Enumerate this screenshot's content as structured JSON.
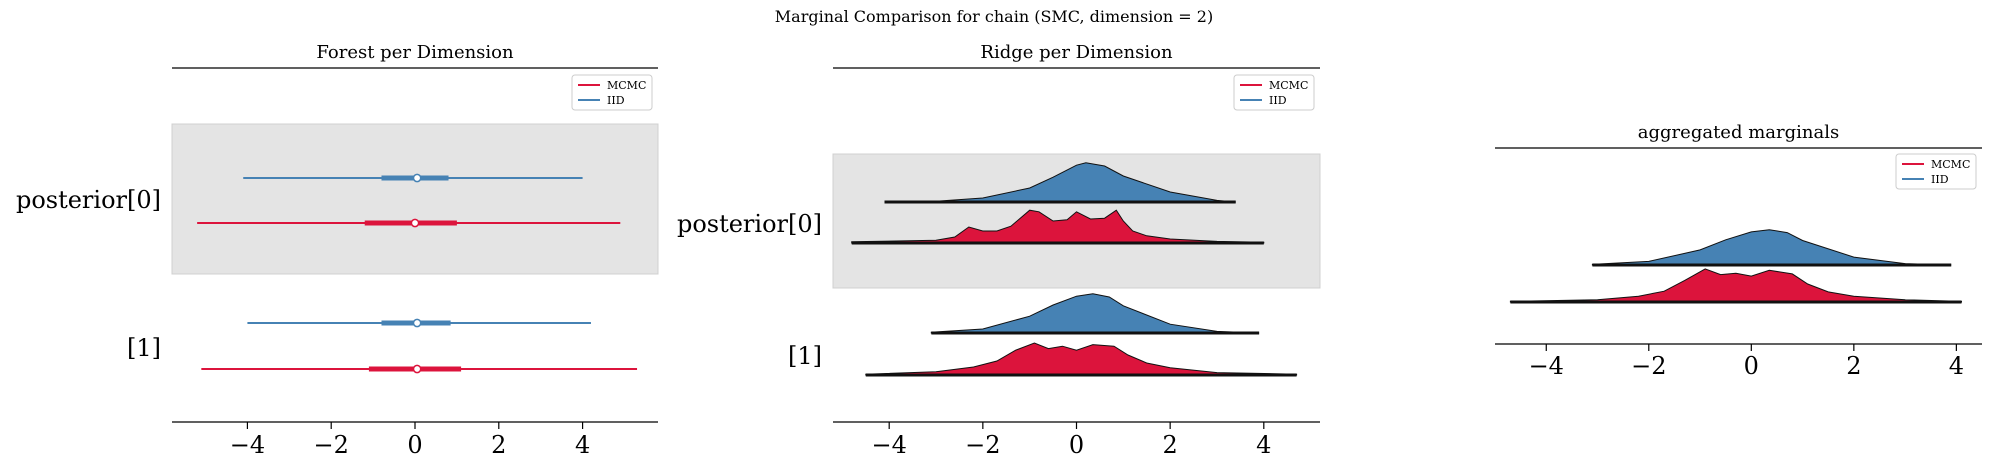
{
  "suptitle": "Marginal Comparison for chain (SMC, dimension = 2)",
  "colors": {
    "mcmc": "#dc143c",
    "iid": "#4682b4",
    "band": "#e4e4e4"
  },
  "chart_data": [
    {
      "type": "forest",
      "title": "Forest per Dimension",
      "row_labels": [
        "posterior[0]",
        "[1]"
      ],
      "xticks": [
        -4,
        -2,
        0,
        2,
        4
      ],
      "xlim": [
        -5.8,
        5.8
      ],
      "legend": {
        "placement": "top-right",
        "entries": [
          "MCMC",
          "IID"
        ]
      },
      "series": [
        {
          "name": "IID",
          "rows": [
            {
              "hdi": [
                -4.1,
                4.0
              ],
              "iqr": [
                -0.8,
                0.8
              ],
              "median": 0.05
            },
            {
              "hdi": [
                -4.0,
                4.2
              ],
              "iqr": [
                -0.8,
                0.85
              ],
              "median": 0.05
            }
          ]
        },
        {
          "name": "MCMC",
          "rows": [
            {
              "hdi": [
                -5.2,
                4.9
              ],
              "iqr": [
                -1.2,
                1.0
              ],
              "median": 0.0
            },
            {
              "hdi": [
                -5.1,
                5.3
              ],
              "iqr": [
                -1.1,
                1.1
              ],
              "median": 0.05
            }
          ]
        }
      ]
    },
    {
      "type": "ridge",
      "title": "Ridge per Dimension",
      "row_labels": [
        "posterior[0]",
        "[1]"
      ],
      "xticks": [
        -4,
        -2,
        0,
        2,
        4
      ],
      "xlim": [
        -5.2,
        5.2
      ],
      "legend": {
        "placement": "top-right",
        "entries": [
          "MCMC",
          "IID"
        ]
      },
      "rows": [
        {
          "series": [
            {
              "name": "IID",
              "x": [
                -4.1,
                -3.0,
                -2.0,
                -1.0,
                -0.5,
                0.0,
                0.2,
                0.6,
                1.0,
                2.0,
                3.0,
                3.4
              ],
              "y": [
                0.0,
                0.02,
                0.1,
                0.35,
                0.62,
                0.92,
                0.98,
                0.9,
                0.65,
                0.25,
                0.04,
                0.0
              ]
            },
            {
              "name": "MCMC",
              "x": [
                -4.8,
                -3.0,
                -2.6,
                -2.3,
                -2.0,
                -1.7,
                -1.4,
                -1.0,
                -0.8,
                -0.5,
                -0.2,
                0.0,
                0.3,
                0.6,
                0.85,
                1.0,
                1.2,
                1.5,
                2.0,
                3.0,
                4.0
              ],
              "y": [
                0.03,
                0.07,
                0.15,
                0.4,
                0.3,
                0.3,
                0.42,
                0.82,
                0.78,
                0.55,
                0.58,
                0.78,
                0.6,
                0.62,
                0.82,
                0.55,
                0.3,
                0.18,
                0.1,
                0.04,
                0.02
              ]
            }
          ]
        },
        {
          "series": [
            {
              "name": "IID",
              "x": [
                -3.1,
                -2.0,
                -1.0,
                -0.5,
                0.0,
                0.35,
                0.7,
                1.0,
                2.0,
                3.0,
                3.9
              ],
              "y": [
                0.02,
                0.1,
                0.42,
                0.7,
                0.92,
                0.98,
                0.9,
                0.68,
                0.22,
                0.04,
                0.0
              ]
            },
            {
              "name": "MCMC",
              "x": [
                -4.5,
                -3.0,
                -2.2,
                -1.7,
                -1.3,
                -0.9,
                -0.6,
                -0.3,
                0.0,
                0.35,
                0.8,
                1.1,
                1.5,
                2.0,
                3.0,
                4.7
              ],
              "y": [
                0.02,
                0.08,
                0.2,
                0.35,
                0.62,
                0.8,
                0.66,
                0.72,
                0.62,
                0.76,
                0.72,
                0.5,
                0.3,
                0.18,
                0.06,
                0.02
              ]
            }
          ]
        }
      ]
    },
    {
      "type": "ridge",
      "title": "aggregated marginals",
      "xticks": [
        -4,
        -2,
        0,
        2,
        4
      ],
      "xlim": [
        -5.0,
        4.5
      ],
      "legend": {
        "placement": "top-right",
        "entries": [
          "MCMC",
          "IID"
        ]
      },
      "rows": [
        {
          "series": [
            {
              "name": "IID",
              "x": [
                -3.1,
                -2.0,
                -1.0,
                -0.5,
                0.0,
                0.35,
                0.7,
                1.0,
                2.0,
                3.0,
                3.9
              ],
              "y": [
                0.02,
                0.1,
                0.42,
                0.7,
                0.92,
                0.98,
                0.9,
                0.68,
                0.22,
                0.04,
                0.0
              ]
            },
            {
              "name": "MCMC",
              "x": [
                -4.7,
                -3.0,
                -2.2,
                -1.7,
                -1.3,
                -0.9,
                -0.6,
                -0.3,
                0.0,
                0.35,
                0.8,
                1.1,
                1.5,
                2.0,
                3.0,
                4.1
              ],
              "y": [
                0.02,
                0.06,
                0.16,
                0.3,
                0.6,
                0.92,
                0.76,
                0.8,
                0.72,
                0.88,
                0.78,
                0.5,
                0.28,
                0.16,
                0.06,
                0.02
              ]
            }
          ]
        }
      ]
    }
  ]
}
